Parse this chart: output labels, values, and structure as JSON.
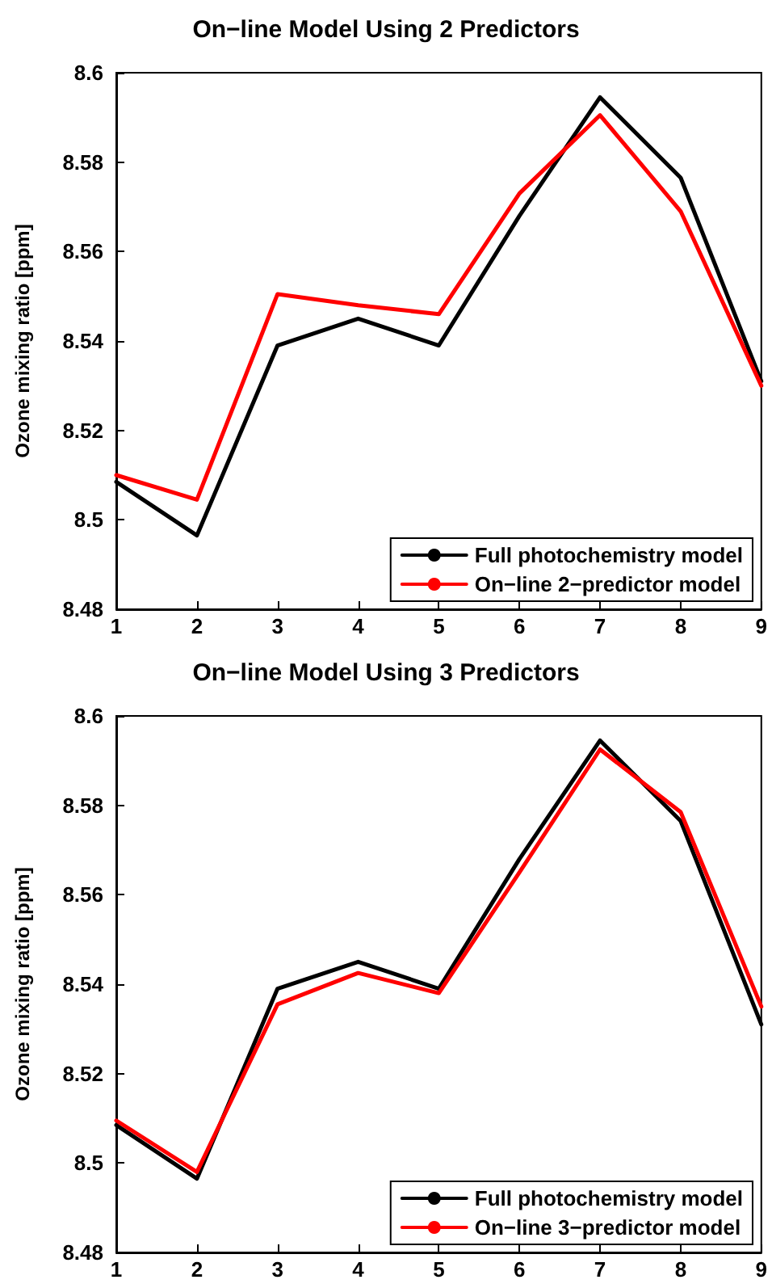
{
  "chart_data": [
    {
      "type": "line",
      "title": "On−line Model Using 2 Predictors",
      "ylabel": "Ozone mixing ratio [ppm]",
      "x": [
        1,
        2,
        3,
        4,
        5,
        6,
        7,
        8,
        9
      ],
      "xlim": [
        1,
        9
      ],
      "xticks": [
        1,
        2,
        3,
        4,
        5,
        6,
        7,
        8,
        9
      ],
      "ylim": [
        8.48,
        8.6
      ],
      "yticks": [
        8.48,
        8.5,
        8.52,
        8.54,
        8.56,
        8.58,
        8.6
      ],
      "grid": false,
      "legend": "bottom right",
      "marker": "none",
      "line_style": "solid",
      "series": [
        {
          "name": "Full photochemistry model",
          "color": "#000000",
          "values": [
            8.5085,
            8.4965,
            8.539,
            8.545,
            8.539,
            8.568,
            8.5945,
            8.5765,
            8.531
          ]
        },
        {
          "name": "On−line 2−predictor model",
          "color": "#ff0000",
          "values": [
            8.51,
            8.5045,
            8.5505,
            8.548,
            8.546,
            8.573,
            8.5905,
            8.569,
            8.53
          ]
        }
      ]
    },
    {
      "type": "line",
      "title": "On−line Model Using 3 Predictors",
      "ylabel": "Ozone mixing ratio [ppm]",
      "x": [
        1,
        2,
        3,
        4,
        5,
        6,
        7,
        8,
        9
      ],
      "xlim": [
        1,
        9
      ],
      "xticks": [
        1,
        2,
        3,
        4,
        5,
        6,
        7,
        8,
        9
      ],
      "ylim": [
        8.48,
        8.6
      ],
      "yticks": [
        8.48,
        8.5,
        8.52,
        8.54,
        8.56,
        8.58,
        8.6
      ],
      "grid": false,
      "legend": "bottom right",
      "marker": "none",
      "line_style": "solid",
      "series": [
        {
          "name": "Full photochemistry model",
          "color": "#000000",
          "values": [
            8.5085,
            8.4965,
            8.539,
            8.545,
            8.539,
            8.568,
            8.5945,
            8.5765,
            8.531
          ]
        },
        {
          "name": "On−line 3−predictor model",
          "color": "#ff0000",
          "values": [
            8.5095,
            8.498,
            8.5355,
            8.5425,
            8.538,
            8.565,
            8.5925,
            8.5785,
            8.535
          ]
        }
      ]
    }
  ]
}
